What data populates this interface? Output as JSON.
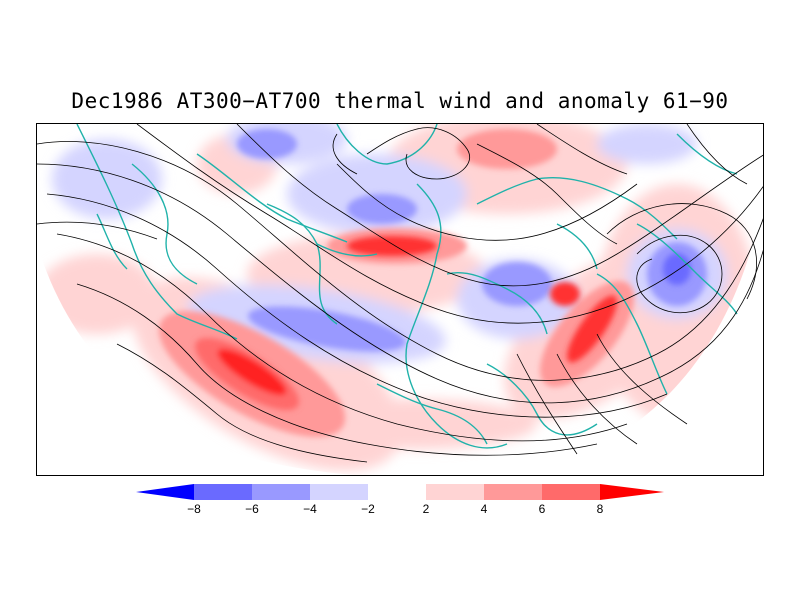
{
  "title": "Dec1986 AT300−AT700 thermal wind and anomaly 61−90",
  "colorbar": {
    "levels": [
      "−8",
      "−6",
      "−4",
      "−2",
      "2",
      "4",
      "6",
      "8"
    ],
    "colors": {
      "neg_extreme": "#0000ff",
      "neg_8_6": "#6a6aff",
      "neg_6_4": "#9999ff",
      "neg_4_2": "#d4d4ff",
      "neutral": "#ffffff",
      "pos_2_4": "#ffd4d4",
      "pos_4_6": "#ff9999",
      "pos_6_8": "#ff6a6a",
      "pos_extreme": "#ff0000"
    }
  },
  "map": {
    "projection": "polar stereographic, northern hemisphere",
    "coastline_color": "#20b2aa",
    "streamline_color": "#000000"
  }
}
